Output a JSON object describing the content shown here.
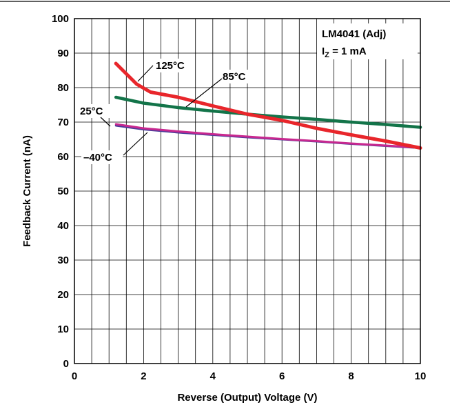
{
  "chart_data": {
    "type": "line",
    "title": "",
    "xlabel": "Reverse (Output) Voltage (V)",
    "ylabel": "Feedback Current (nA)",
    "xlim": [
      0,
      10
    ],
    "ylim": [
      0,
      100
    ],
    "x_ticks": [
      0,
      2,
      4,
      6,
      8,
      10
    ],
    "y_ticks": [
      0,
      10,
      20,
      30,
      40,
      50,
      60,
      70,
      80,
      90,
      100
    ],
    "grid": true,
    "legend": "none",
    "annotation": {
      "device": "LM4041 (Adj)",
      "condition_main": "I",
      "condition_sub": "Z",
      "condition_rest": " = 1 mA"
    },
    "series": [
      {
        "name": "125°C",
        "color": "#e8262b",
        "x": [
          1.2,
          1.5,
          1.8,
          2.2,
          3.0,
          4.0,
          5.0,
          6.0,
          7.0,
          8.0,
          9.0,
          10.0
        ],
        "y": [
          87,
          84,
          81,
          78.7,
          77.2,
          74.7,
          72.3,
          70.5,
          68.2,
          66.3,
          64.5,
          62.5
        ]
      },
      {
        "name": "85°C",
        "color": "#137449",
        "x": [
          1.2,
          2.0,
          3.0,
          4.0,
          5.0,
          6.0,
          7.0,
          8.0,
          9.0,
          10.0
        ],
        "y": [
          77.2,
          75.5,
          74.2,
          73.2,
          72.3,
          71.5,
          70.8,
          70.0,
          69.3,
          68.5
        ]
      },
      {
        "name": "25°C",
        "color": "#c8288f",
        "x": [
          1.2,
          2.0,
          3.0,
          4.0,
          5.0,
          6.0,
          7.0,
          8.0,
          9.0,
          10.0
        ],
        "y": [
          69.4,
          68.2,
          67.3,
          66.5,
          65.8,
          65.1,
          64.5,
          63.8,
          63.2,
          62.6
        ]
      },
      {
        "name": "–40°C",
        "color": "#4a3c9a",
        "x": [
          1.2,
          2.0,
          3.0,
          4.0,
          5.0,
          6.0,
          7.0,
          8.0,
          9.0,
          10.0
        ],
        "y": [
          69.0,
          67.9,
          67.0,
          66.3,
          65.6,
          65.0,
          64.4,
          63.7,
          63.1,
          62.5
        ]
      }
    ]
  }
}
